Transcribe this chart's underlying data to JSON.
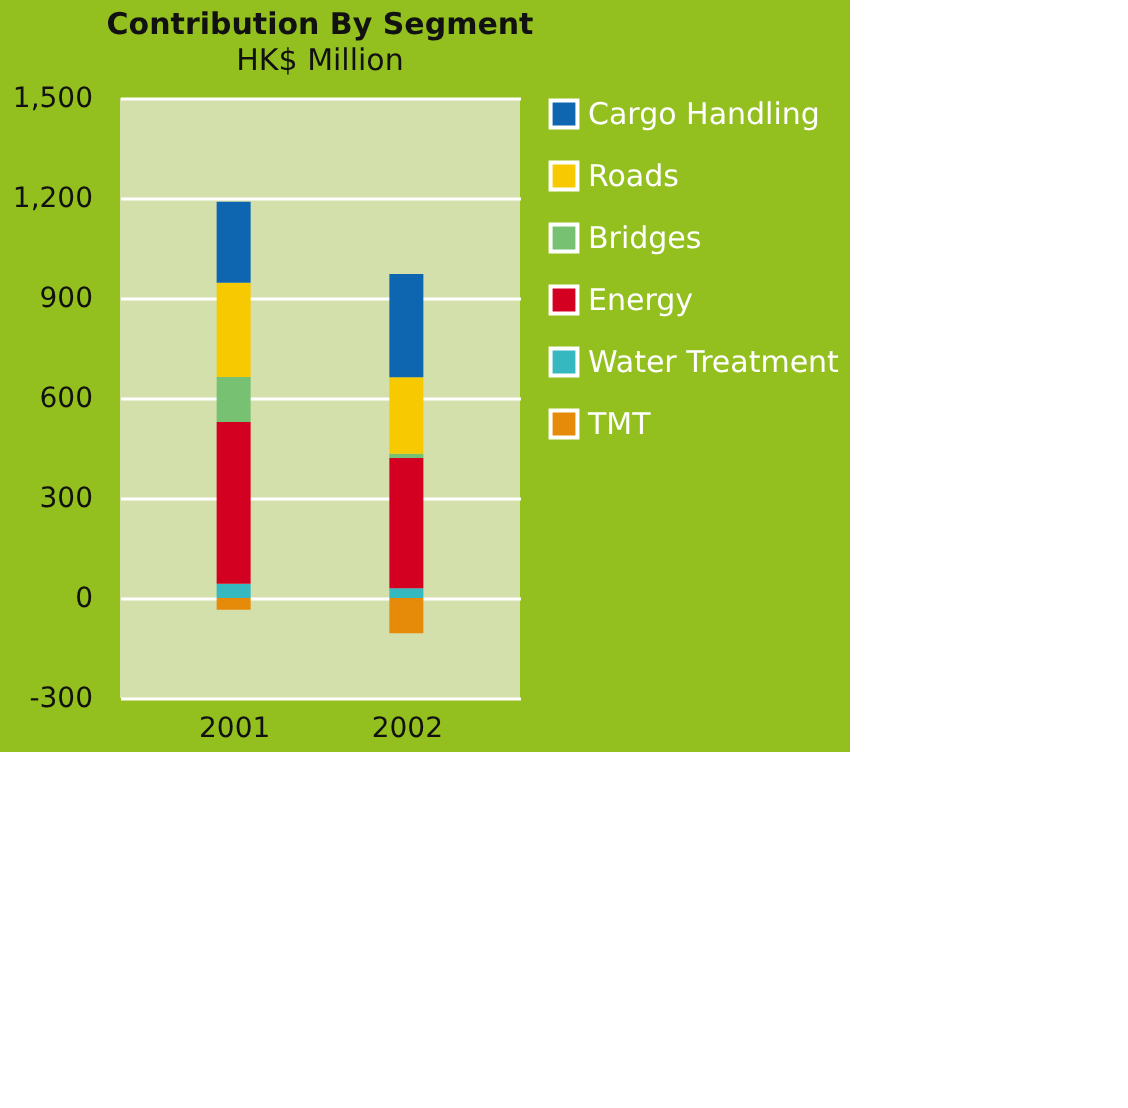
{
  "chart_data": {
    "type": "bar",
    "title": "Contribution By Segment",
    "subtitle": "HK$ Million",
    "categories": [
      "2001",
      "2002"
    ],
    "stacked": true,
    "series": [
      {
        "name": "Water Treatment",
        "color": "#35b8c0",
        "values": [
          43,
          29
        ]
      },
      {
        "name": "Energy",
        "color": "#d40022",
        "values": [
          485,
          391
        ]
      },
      {
        "name": "Bridges",
        "color": "#77c272",
        "values": [
          135,
          13
        ]
      },
      {
        "name": "Roads",
        "color": "#f6c900",
        "values": [
          283,
          229
        ]
      },
      {
        "name": "Cargo Handling",
        "color": "#0f66b0",
        "values": [
          243,
          310
        ]
      },
      {
        "name": "TMT",
        "color": "#e68a0a",
        "values": [
          -35,
          -106
        ]
      }
    ],
    "ylim": [
      -300,
      1500
    ],
    "yticks": [
      {
        "value": -300,
        "label": "-300"
      },
      0,
      300,
      600,
      900,
      {
        "value": 1200,
        "label": "1,200"
      },
      {
        "value": 1500,
        "label": "1,500"
      }
    ],
    "grid": "y",
    "legend": "right"
  }
}
